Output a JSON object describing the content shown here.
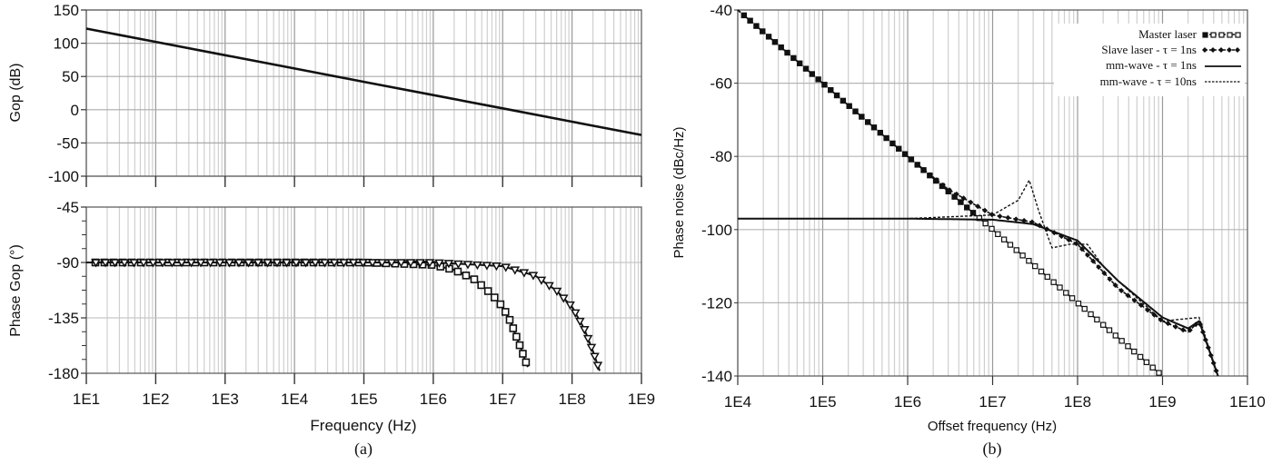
{
  "figure": {
    "panel_a_caption": "(a)",
    "panel_b_caption": "(b)"
  },
  "chart_data": [
    {
      "id": "a-top",
      "type": "line",
      "title": "",
      "xlabel": "",
      "ylabel": "Gop (dB)",
      "xscale": "log",
      "xlim": [
        10,
        1000000000
      ],
      "ylim": [
        -100,
        150
      ],
      "yticks": [
        150,
        100,
        50,
        0,
        -50,
        -100
      ],
      "grid": true,
      "series": [
        {
          "name": "Gop",
          "style": "solid",
          "x": [
            10,
            100,
            1000,
            10000,
            100000,
            1000000,
            10000000,
            100000000,
            1000000000
          ],
          "y": [
            122,
            102,
            82,
            62,
            42,
            22,
            2,
            -18,
            -38
          ]
        }
      ]
    },
    {
      "id": "a-bottom",
      "type": "line",
      "title": "",
      "xlabel": "Frequency (Hz)",
      "ylabel": "Phase Gop (°)",
      "xscale": "log",
      "xlim": [
        10,
        1000000000
      ],
      "ylim": [
        -180,
        -45
      ],
      "yticks": [
        -45,
        -90,
        -135,
        -180
      ],
      "xticks": [
        "1E1",
        "1E2",
        "1E3",
        "1E4",
        "1E5",
        "1E6",
        "1E7",
        "1E8",
        "1E9"
      ],
      "grid": true,
      "series": [
        {
          "name": "Phase (square markers)",
          "marker": "square",
          "x": [
            10,
            100000,
            1000000,
            2000000,
            4000000,
            7000000,
            10000000,
            13000000,
            17000000,
            23000000
          ],
          "y": [
            -90,
            -90,
            -92,
            -96,
            -104,
            -116,
            -126,
            -138,
            -155,
            -175
          ]
        },
        {
          "name": "Phase (triangle markers)",
          "marker": "triangle-down",
          "x": [
            10,
            1000000,
            10000000,
            30000000,
            60000000,
            100000000,
            150000000,
            200000000,
            250000000
          ],
          "y": [
            -90,
            -90,
            -93,
            -101,
            -113,
            -126,
            -144,
            -162,
            -178
          ]
        }
      ]
    },
    {
      "id": "b",
      "type": "line",
      "title": "",
      "xlabel": "Offset frequency (Hz)",
      "ylabel": "Phase noise (dBc/Hz)",
      "xscale": "log",
      "xlim": [
        10000,
        10000000000
      ],
      "ylim": [
        -140,
        -40
      ],
      "yticks": [
        -40,
        -60,
        -80,
        -100,
        -120,
        -140
      ],
      "xticks": [
        "1E4",
        "1E5",
        "1E6",
        "1E7",
        "1E8",
        "1E9",
        "1E10"
      ],
      "grid": true,
      "legend_position": "upper right",
      "series": [
        {
          "name": "Master laser",
          "style": "dashed-square-markers",
          "x": [
            10000,
            100000,
            1000000,
            10000000,
            100000000,
            1000000000
          ],
          "y": [
            -40,
            -60,
            -80,
            -100,
            -120,
            -140
          ]
        },
        {
          "name": "Slave laser - τ = 1ns",
          "style": "dashed-diamond-markers",
          "x": [
            10000,
            100000,
            1000000,
            3000000,
            10000000,
            30000000,
            100000000,
            300000000,
            1000000000,
            2000000000,
            2700000000,
            4500000000
          ],
          "y": [
            -40,
            -60,
            -80,
            -89,
            -96,
            -98,
            -104,
            -116,
            -125,
            -128,
            -125,
            -140
          ]
        },
        {
          "name": "mm-wave - τ = 1ns",
          "style": "solid",
          "x": [
            10000,
            1000000,
            10000000,
            30000000,
            100000000,
            300000000,
            1000000000,
            2000000000,
            2700000000,
            4500000000
          ],
          "y": [
            -97,
            -97,
            -97.3,
            -98.5,
            -103,
            -114,
            -124,
            -127,
            -125,
            -140
          ]
        },
        {
          "name": "mm-wave - τ = 10ns",
          "style": "dotted",
          "x": [
            10000,
            1000000,
            10000000,
            20000000,
            27000000,
            35000000,
            50000000,
            80000000,
            130000000,
            200000000,
            300000000,
            1000000000,
            2700000000,
            4500000000
          ],
          "y": [
            -97,
            -97,
            -96,
            -92,
            -86.5,
            -95,
            -105,
            -104,
            -104,
            -110,
            -114,
            -125,
            -124,
            -140
          ]
        }
      ]
    }
  ],
  "legend_b": {
    "items": [
      {
        "label": "Master laser"
      },
      {
        "label": "Slave laser - τ = 1ns"
      },
      {
        "label": "mm-wave - τ = 1ns"
      },
      {
        "label": "mm-wave - τ = 10ns"
      }
    ]
  }
}
